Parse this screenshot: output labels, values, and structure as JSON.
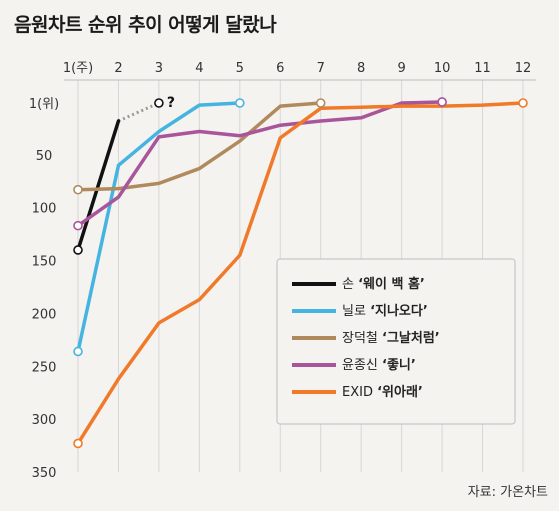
{
  "title": "음원차트 순위 추이 어떻게 달랐나",
  "source": "자료: 가온차트",
  "chart_data": {
    "type": "line",
    "x_ticks": [
      "1(주)",
      "2",
      "3",
      "4",
      "5",
      "6",
      "7",
      "8",
      "9",
      "10",
      "11",
      "12"
    ],
    "y_ticks": [
      "1(위)",
      "50",
      "100",
      "150",
      "200",
      "250",
      "300",
      "350"
    ],
    "y_tick_values": [
      1,
      50,
      100,
      150,
      200,
      250,
      300,
      350
    ],
    "xlim": [
      1,
      12
    ],
    "ylim": [
      350,
      1
    ],
    "legend_position": "center-right",
    "series": [
      {
        "singer": "손 ",
        "song": "‘웨이 백 홈’",
        "color": "#111111",
        "points": [
          [
            1,
            140
          ],
          [
            2,
            18
          ]
        ],
        "dashed_extension": [
          [
            2,
            18
          ],
          [
            3,
            1
          ]
        ],
        "end_marker_label": "?",
        "open_markers": [
          1,
          3
        ]
      },
      {
        "singer": "닐로 ",
        "song": "‘지나오다’",
        "color": "#45b4e0",
        "points": [
          [
            1,
            236
          ],
          [
            2,
            60
          ],
          [
            3,
            28
          ],
          [
            4,
            3
          ],
          [
            5,
            1
          ]
        ],
        "open_markers": [
          1,
          5
        ]
      },
      {
        "singer": "장덕철 ",
        "song": "‘그날처럼’",
        "color": "#b08a5c",
        "points": [
          [
            1,
            83
          ],
          [
            2,
            82
          ],
          [
            3,
            77
          ],
          [
            4,
            63
          ],
          [
            5,
            37
          ],
          [
            6,
            4
          ],
          [
            7,
            1
          ]
        ],
        "open_markers": [
          1,
          7
        ]
      },
      {
        "singer": "윤종신 ",
        "song": "‘좋니’",
        "color": "#a8559b",
        "points": [
          [
            1,
            117
          ],
          [
            2,
            90
          ],
          [
            3,
            33
          ],
          [
            4,
            28
          ],
          [
            5,
            32
          ],
          [
            6,
            22
          ],
          [
            7,
            18
          ],
          [
            8,
            15
          ],
          [
            9,
            1
          ],
          [
            10,
            0
          ]
        ],
        "open_markers": [
          1,
          10
        ]
      },
      {
        "singer": "EXID ",
        "song": "‘위아래’",
        "color": "#f07a2a",
        "points": [
          [
            1,
            323
          ],
          [
            2,
            262
          ],
          [
            3,
            209
          ],
          [
            4,
            187
          ],
          [
            5,
            145
          ],
          [
            6,
            34
          ],
          [
            7,
            6
          ],
          [
            8,
            5
          ],
          [
            9,
            4
          ],
          [
            10,
            4
          ],
          [
            11,
            3
          ],
          [
            12,
            1
          ]
        ],
        "open_markers": [
          1,
          12
        ]
      }
    ]
  }
}
